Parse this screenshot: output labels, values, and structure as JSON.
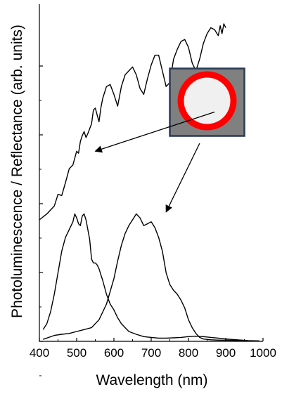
{
  "chart_data": {
    "type": "line",
    "title": "",
    "xlabel": "Wavelength (nm)",
    "ylabel": "Photoluminescence / Reflectance (arb. units)",
    "xlim": [
      400,
      1000
    ],
    "x_ticks": [
      400,
      500,
      600,
      700,
      800,
      900,
      1000
    ],
    "y_tick_count": 6,
    "y_tick_labels_shown": false,
    "grid": false,
    "legend": "none",
    "colors": {
      "curve": "#000000",
      "inset_background": "#808080",
      "inset_border": "#2b3a55",
      "shell": "#ff0000",
      "core": "#f0f0f0"
    },
    "series": [
      {
        "x": [
          385,
          400,
          420,
          440,
          450,
          460,
          470,
          480,
          490,
          500,
          505,
          510,
          515,
          520,
          525,
          530,
          540,
          545,
          550,
          560,
          565,
          570,
          580,
          590,
          600,
          610,
          620,
          630,
          640,
          650,
          660,
          670,
          680,
          690,
          700,
          710,
          720,
          730,
          740,
          750,
          760,
          770,
          780,
          790,
          800,
          810,
          820,
          830,
          840,
          850,
          860,
          870,
          880,
          885,
          890,
          895,
          900
        ],
        "y": [
          3.0,
          3.1,
          3.25,
          3.45,
          3.75,
          3.72,
          4.05,
          4.4,
          4.5,
          4.85,
          4.8,
          5.1,
          5.25,
          5.35,
          5.2,
          5.3,
          5.55,
          5.9,
          5.95,
          5.6,
          5.95,
          6.2,
          6.5,
          6.55,
          6.3,
          6.0,
          6.5,
          6.8,
          6.9,
          7.0,
          6.8,
          6.45,
          6.3,
          6.7,
          7.05,
          7.3,
          7.3,
          6.9,
          6.5,
          6.6,
          7.2,
          7.45,
          7.65,
          7.7,
          7.5,
          7.1,
          6.9,
          7.2,
          7.6,
          7.85,
          8.0,
          7.95,
          7.8,
          8.05,
          7.85,
          8.1,
          8.0
        ]
      },
      {
        "x": [
          410,
          420,
          430,
          440,
          450,
          460,
          470,
          480,
          490,
          495,
          500,
          505,
          510,
          515,
          520,
          525,
          530,
          535,
          540,
          545,
          550,
          555,
          560,
          565,
          570,
          580,
          590,
          600,
          610,
          620,
          630,
          640,
          660,
          680,
          700,
          720,
          740,
          760,
          780,
          800,
          820,
          840,
          860,
          880,
          900,
          930,
          960,
          990
        ],
        "y": [
          0.3,
          0.45,
          0.75,
          1.2,
          1.75,
          2.3,
          2.65,
          2.85,
          3.05,
          3.25,
          3.15,
          3.0,
          2.95,
          3.2,
          3.25,
          3.1,
          2.85,
          2.6,
          2.1,
          2.0,
          2.0,
          1.95,
          1.85,
          1.7,
          1.55,
          1.2,
          0.95,
          0.8,
          0.6,
          0.45,
          0.35,
          0.25,
          0.18,
          0.12,
          0.1,
          0.08,
          0.08,
          0.09,
          0.1,
          0.12,
          0.13,
          0.12,
          0.1,
          0.08,
          0.06,
          0.04,
          0.02,
          0.01
        ]
      },
      {
        "x": [
          410,
          440,
          460,
          480,
          500,
          520,
          540,
          560,
          580,
          600,
          610,
          620,
          630,
          640,
          650,
          660,
          670,
          680,
          690,
          700,
          710,
          720,
          730,
          740,
          750,
          760,
          770,
          780,
          790,
          800,
          810,
          820,
          830,
          840,
          860,
          880,
          900,
          930,
          960,
          990
        ],
        "y": [
          0.05,
          0.15,
          0.18,
          0.2,
          0.25,
          0.3,
          0.35,
          0.55,
          0.95,
          1.6,
          2.05,
          2.45,
          2.75,
          2.95,
          3.1,
          3.25,
          3.15,
          2.95,
          3.0,
          3.05,
          2.9,
          2.65,
          2.3,
          1.75,
          1.45,
          1.3,
          1.2,
          1.05,
          0.85,
          0.55,
          0.35,
          0.2,
          0.1,
          0.06,
          0.04,
          0.03,
          0.03,
          0.02,
          0.01,
          0.01
        ]
      }
    ],
    "ylim": [
      0,
      8.6
    ],
    "annotations": [
      {
        "from": [
          870,
          5.85
        ],
        "to": [
          550,
          4.85
        ],
        "target_series": 1
      },
      {
        "from": [
          830,
          5.05
        ],
        "to": [
          740,
          3.3
        ],
        "target_series": 2
      }
    ],
    "inset_center_data": [
      850,
      6.1
    ],
    "inset": {
      "description_icon": "core-shell-nanoparticle-icon"
    }
  }
}
